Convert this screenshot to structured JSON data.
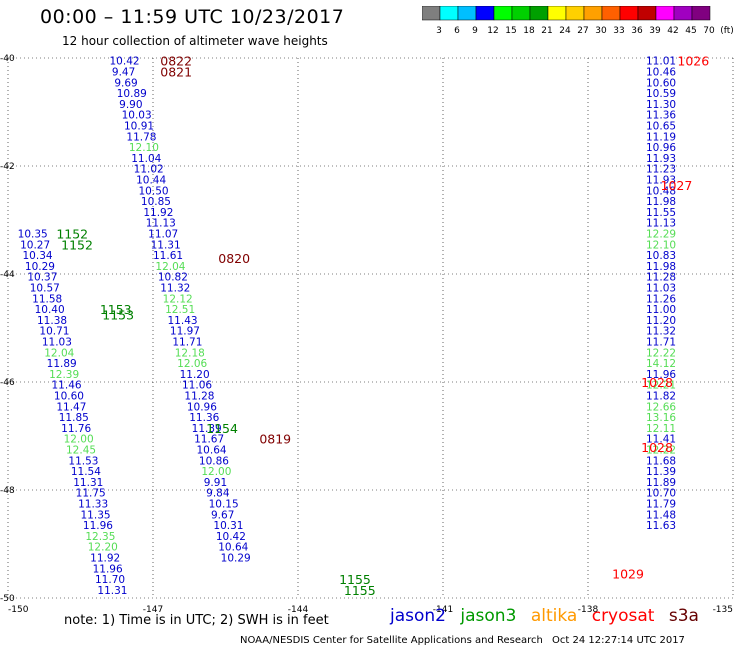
{
  "header": {
    "title": "00:00 – 11:59 UTC 10/23/2017",
    "subtitle": "12 hour collection of altimeter wave heights"
  },
  "colorbar": {
    "labels": [
      "3",
      "6",
      "9",
      "12",
      "15",
      "18",
      "21",
      "24",
      "27",
      "30",
      "33",
      "36",
      "39",
      "42",
      "45",
      "70",
      "(ft)"
    ],
    "colors": [
      "#7f7f7f",
      "#00ffff",
      "#00bfff",
      "#0000ff",
      "#00ff00",
      "#00d000",
      "#00a000",
      "#ffff00",
      "#ffd000",
      "#ffa000",
      "#ff6000",
      "#ff0000",
      "#c00000",
      "#ff00ff",
      "#a000c0",
      "#800080"
    ]
  },
  "note": "note:  1) Time is in UTC;  2) SWH is in feet",
  "legend": [
    {
      "name": "jason2",
      "color": "#0000cc"
    },
    {
      "name": "jason3",
      "color": "#009900"
    },
    {
      "name": "altika",
      "color": "#ff9900"
    },
    {
      "name": "cryosat",
      "color": "#ff0000"
    },
    {
      "name": "s3a",
      "color": "#660000"
    }
  ],
  "footer": {
    "center": "NOAA/NESDIS Center for Satellite Applications and Research",
    "time": "Oct 24 12:27:14 UTC 2017"
  },
  "chart_data": {
    "type": "scatter",
    "xlim": [
      -150,
      -135
    ],
    "ylim": [
      -50,
      -40
    ],
    "x_ticks": [
      "-150",
      "-147",
      "-144",
      "-141",
      "-138",
      "-135"
    ],
    "y_ticks": [
      "-40",
      "-42",
      "-44",
      "-46",
      "-48",
      "-50"
    ],
    "grid": true,
    "annotations": [
      {
        "text": "0822",
        "x": -146.85,
        "y": -40.05,
        "color": "#800000"
      },
      {
        "text": "0821",
        "x": -146.85,
        "y": -40.25,
        "color": "#800000"
      },
      {
        "text": "0820",
        "x": -145.65,
        "y": -43.7,
        "color": "#800000"
      },
      {
        "text": "0819",
        "x": -144.8,
        "y": -47.05,
        "color": "#800000"
      },
      {
        "text": "1152",
        "x": -149.0,
        "y": -43.25,
        "color": "#008000"
      },
      {
        "text": "1152",
        "x": -148.9,
        "y": -43.45,
        "color": "#008000"
      },
      {
        "text": "1153",
        "x": -148.1,
        "y": -44.65,
        "color": "#008000"
      },
      {
        "text": "1153",
        "x": -148.05,
        "y": -44.75,
        "color": "#008000"
      },
      {
        "text": "1154",
        "x": -145.9,
        "y": -46.85,
        "color": "#008000"
      },
      {
        "text": "1155",
        "x": -143.15,
        "y": -49.65,
        "color": "#008000"
      },
      {
        "text": "1155",
        "x": -143.05,
        "y": -49.85,
        "color": "#008000"
      },
      {
        "text": "1026",
        "x": -136.15,
        "y": -40.05,
        "color": "#ff0000"
      },
      {
        "text": "1027",
        "x": -136.5,
        "y": -42.35,
        "color": "#ff0000"
      },
      {
        "text": "1028",
        "x": -136.9,
        "y": -46.0,
        "color": "#ff0000"
      },
      {
        "text": "1028",
        "x": -136.9,
        "y": -47.2,
        "color": "#ff0000"
      },
      {
        "text": "1029",
        "x": -137.5,
        "y": -49.55,
        "color": "#ff0000"
      }
    ],
    "series": [
      {
        "name": "jason2",
        "color_hint": "blue/green by value",
        "points": [
          {
            "x": -147.9,
            "y": -40.05,
            "v": "10.42"
          },
          {
            "x": -147.85,
            "y": -40.25,
            "v": "9.47"
          },
          {
            "x": -147.8,
            "y": -40.45,
            "v": "9.69"
          },
          {
            "x": -147.75,
            "y": -40.65,
            "v": "10.89"
          },
          {
            "x": -147.7,
            "y": -40.85,
            "v": "9.90"
          },
          {
            "x": -147.65,
            "y": -41.05,
            "v": "10.03"
          },
          {
            "x": -147.6,
            "y": -41.25,
            "v": "10.91"
          },
          {
            "x": -147.55,
            "y": -41.45,
            "v": "11.78"
          },
          {
            "x": -147.5,
            "y": -41.65,
            "v": "12.10"
          },
          {
            "x": -147.45,
            "y": -41.85,
            "v": "11.04"
          },
          {
            "x": -147.4,
            "y": -42.05,
            "v": "11.02"
          },
          {
            "x": -147.35,
            "y": -42.25,
            "v": "10.44"
          },
          {
            "x": -147.3,
            "y": -42.45,
            "v": "10.50"
          },
          {
            "x": -147.25,
            "y": -42.65,
            "v": "10.85"
          },
          {
            "x": -147.2,
            "y": -42.85,
            "v": "11.92"
          },
          {
            "x": -147.15,
            "y": -43.05,
            "v": "11.13"
          },
          {
            "x": -147.1,
            "y": -43.25,
            "v": "11.07"
          },
          {
            "x": -147.05,
            "y": -43.45,
            "v": "11.31"
          },
          {
            "x": -147.0,
            "y": -43.65,
            "v": "11.61"
          },
          {
            "x": -146.95,
            "y": -43.85,
            "v": "12.04"
          },
          {
            "x": -146.9,
            "y": -44.05,
            "v": "10.82"
          },
          {
            "x": -146.85,
            "y": -44.25,
            "v": "11.32"
          },
          {
            "x": -146.8,
            "y": -44.45,
            "v": "12.12"
          },
          {
            "x": -146.75,
            "y": -44.65,
            "v": "12.51"
          },
          {
            "x": -146.7,
            "y": -44.85,
            "v": "11.43"
          },
          {
            "x": -146.65,
            "y": -45.05,
            "v": "11.97"
          },
          {
            "x": -146.6,
            "y": -45.25,
            "v": "11.71"
          },
          {
            "x": -146.55,
            "y": -45.45,
            "v": "12.18"
          },
          {
            "x": -146.5,
            "y": -45.65,
            "v": "12.06"
          },
          {
            "x": -146.45,
            "y": -45.85,
            "v": "11.20"
          },
          {
            "x": -146.4,
            "y": -46.05,
            "v": "11.06"
          },
          {
            "x": -146.35,
            "y": -46.25,
            "v": "11.28"
          },
          {
            "x": -146.3,
            "y": -46.45,
            "v": "10.96"
          },
          {
            "x": -146.25,
            "y": -46.65,
            "v": "11.36"
          },
          {
            "x": -146.2,
            "y": -46.85,
            "v": "11.39"
          },
          {
            "x": -146.15,
            "y": -47.05,
            "v": "11.67"
          },
          {
            "x": -146.1,
            "y": -47.25,
            "v": "10.64"
          },
          {
            "x": -146.05,
            "y": -47.45,
            "v": "10.86"
          },
          {
            "x": -146.0,
            "y": -47.65,
            "v": "12.00"
          },
          {
            "x": -145.95,
            "y": -47.85,
            "v": "9.91"
          },
          {
            "x": -145.9,
            "y": -48.05,
            "v": "9.84"
          },
          {
            "x": -145.85,
            "y": -48.25,
            "v": "10.15"
          },
          {
            "x": -145.8,
            "y": -48.45,
            "v": "9.67"
          },
          {
            "x": -145.75,
            "y": -48.65,
            "v": "10.31"
          },
          {
            "x": -145.7,
            "y": -48.85,
            "v": "10.42"
          },
          {
            "x": -145.65,
            "y": -49.05,
            "v": "10.64"
          },
          {
            "x": -145.6,
            "y": -49.25,
            "v": "10.29"
          }
        ]
      },
      {
        "name": "jason3",
        "color_hint": "blue/green by value",
        "points": [
          {
            "x": -149.8,
            "y": -43.25,
            "v": "10.35"
          },
          {
            "x": -149.75,
            "y": -43.45,
            "v": "10.27"
          },
          {
            "x": -149.7,
            "y": -43.65,
            "v": "10.34"
          },
          {
            "x": -149.65,
            "y": -43.85,
            "v": "10.29"
          },
          {
            "x": -149.6,
            "y": -44.05,
            "v": "10.37"
          },
          {
            "x": -149.55,
            "y": -44.25,
            "v": "10.57"
          },
          {
            "x": -149.5,
            "y": -44.45,
            "v": "11.58"
          },
          {
            "x": -149.45,
            "y": -44.65,
            "v": "10.40"
          },
          {
            "x": -149.4,
            "y": -44.85,
            "v": "11.38"
          },
          {
            "x": -149.35,
            "y": -45.05,
            "v": "10.71"
          },
          {
            "x": -149.3,
            "y": -45.25,
            "v": "11.03"
          },
          {
            "x": -149.25,
            "y": -45.45,
            "v": "12.04"
          },
          {
            "x": -149.2,
            "y": -45.65,
            "v": "11.89"
          },
          {
            "x": -149.15,
            "y": -45.85,
            "v": "12.39"
          },
          {
            "x": -149.1,
            "y": -46.05,
            "v": "11.46"
          },
          {
            "x": -149.05,
            "y": -46.25,
            "v": "10.60"
          },
          {
            "x": -149.0,
            "y": -46.45,
            "v": "11.47"
          },
          {
            "x": -148.95,
            "y": -46.65,
            "v": "11.85"
          },
          {
            "x": -148.9,
            "y": -46.85,
            "v": "11.76"
          },
          {
            "x": -148.85,
            "y": -47.05,
            "v": "12.00"
          },
          {
            "x": -148.8,
            "y": -47.25,
            "v": "12.45"
          },
          {
            "x": -148.75,
            "y": -47.45,
            "v": "11.53"
          },
          {
            "x": -148.7,
            "y": -47.65,
            "v": "11.54"
          },
          {
            "x": -148.65,
            "y": -47.85,
            "v": "11.31"
          },
          {
            "x": -148.6,
            "y": -48.05,
            "v": "11.75"
          },
          {
            "x": -148.55,
            "y": -48.25,
            "v": "11.33"
          },
          {
            "x": -148.5,
            "y": -48.45,
            "v": "11.35"
          },
          {
            "x": -148.45,
            "y": -48.65,
            "v": "11.96"
          },
          {
            "x": -148.4,
            "y": -48.85,
            "v": "12.35"
          },
          {
            "x": -148.35,
            "y": -49.05,
            "v": "12.20"
          },
          {
            "x": -148.3,
            "y": -49.25,
            "v": "11.92"
          },
          {
            "x": -148.25,
            "y": -49.45,
            "v": "11.96"
          },
          {
            "x": -148.2,
            "y": -49.65,
            "v": "11.70"
          },
          {
            "x": -148.15,
            "y": -49.85,
            "v": "11.31"
          }
        ]
      },
      {
        "name": "cryosat",
        "color_hint": "blue/green by value",
        "points": [
          {
            "x": -136.8,
            "y": -40.05,
            "v": "11.01"
          },
          {
            "x": -136.8,
            "y": -40.25,
            "v": "10.46"
          },
          {
            "x": -136.8,
            "y": -40.45,
            "v": "10.60"
          },
          {
            "x": -136.8,
            "y": -40.65,
            "v": "10.59"
          },
          {
            "x": -136.8,
            "y": -40.85,
            "v": "11.30"
          },
          {
            "x": -136.8,
            "y": -41.05,
            "v": "11.36"
          },
          {
            "x": -136.8,
            "y": -41.25,
            "v": "10.65"
          },
          {
            "x": -136.8,
            "y": -41.45,
            "v": "11.19"
          },
          {
            "x": -136.8,
            "y": -41.65,
            "v": "10.96"
          },
          {
            "x": -136.8,
            "y": -41.85,
            "v": "11.93"
          },
          {
            "x": -136.8,
            "y": -42.05,
            "v": "11.23"
          },
          {
            "x": -136.8,
            "y": -42.25,
            "v": "11.93"
          },
          {
            "x": -136.8,
            "y": -42.45,
            "v": "10.48"
          },
          {
            "x": -136.8,
            "y": -42.65,
            "v": "11.98"
          },
          {
            "x": -136.8,
            "y": -42.85,
            "v": "11.55"
          },
          {
            "x": -136.8,
            "y": -43.05,
            "v": "11.13"
          },
          {
            "x": -136.8,
            "y": -43.25,
            "v": "12.29"
          },
          {
            "x": -136.8,
            "y": -43.45,
            "v": "12.10"
          },
          {
            "x": -136.8,
            "y": -43.65,
            "v": "10.83"
          },
          {
            "x": -136.8,
            "y": -43.85,
            "v": "11.98"
          },
          {
            "x": -136.8,
            "y": -44.05,
            "v": "11.28"
          },
          {
            "x": -136.8,
            "y": -44.25,
            "v": "11.03"
          },
          {
            "x": -136.8,
            "y": -44.45,
            "v": "11.26"
          },
          {
            "x": -136.8,
            "y": -44.65,
            "v": "11.00"
          },
          {
            "x": -136.8,
            "y": -44.85,
            "v": "11.20"
          },
          {
            "x": -136.8,
            "y": -45.05,
            "v": "11.32"
          },
          {
            "x": -136.8,
            "y": -45.25,
            "v": "11.71"
          },
          {
            "x": -136.8,
            "y": -45.45,
            "v": "12.22"
          },
          {
            "x": -136.8,
            "y": -45.65,
            "v": "14.12"
          },
          {
            "x": -136.8,
            "y": -45.85,
            "v": "11.96"
          },
          {
            "x": -136.8,
            "y": -46.05,
            "v": "12.21"
          },
          {
            "x": -136.8,
            "y": -46.25,
            "v": "11.82"
          },
          {
            "x": -136.8,
            "y": -46.45,
            "v": "12.66"
          },
          {
            "x": -136.8,
            "y": -46.65,
            "v": "13.16"
          },
          {
            "x": -136.8,
            "y": -46.85,
            "v": "12.11"
          },
          {
            "x": -136.8,
            "y": -47.05,
            "v": "11.41"
          },
          {
            "x": -136.8,
            "y": -47.25,
            "v": "12.22"
          },
          {
            "x": -136.8,
            "y": -47.45,
            "v": "11.68"
          },
          {
            "x": -136.8,
            "y": -47.65,
            "v": "11.39"
          },
          {
            "x": -136.8,
            "y": -47.85,
            "v": "11.89"
          },
          {
            "x": -136.8,
            "y": -48.05,
            "v": "10.70"
          },
          {
            "x": -136.8,
            "y": -48.25,
            "v": "11.79"
          },
          {
            "x": -136.8,
            "y": -48.45,
            "v": "11.48"
          },
          {
            "x": -136.8,
            "y": -48.65,
            "v": "11.63"
          }
        ]
      }
    ]
  }
}
